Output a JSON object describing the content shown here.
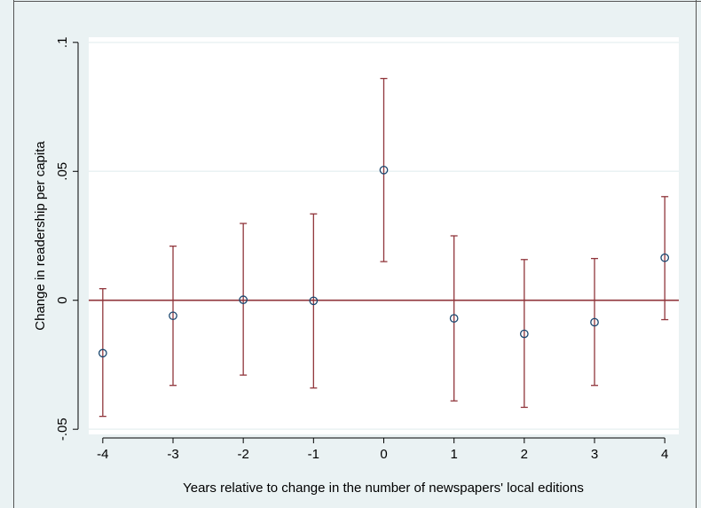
{
  "chart_data": {
    "type": "scatter",
    "title": "",
    "xlabel": "Years relative to change in the number of newspapers' local editions",
    "ylabel": "Change in readership per capita",
    "x_ticks": [
      -4,
      -3,
      -2,
      -1,
      0,
      1,
      2,
      3,
      4
    ],
    "x_tick_labels": [
      "-4",
      "-3",
      "-2",
      "-1",
      "0",
      "1",
      "2",
      "3",
      "4"
    ],
    "y_ticks": [
      -0.05,
      0,
      0.05,
      0.1
    ],
    "y_tick_labels": [
      "-.05",
      "0",
      ".05",
      ".1"
    ],
    "xlim": [
      -4.2,
      4.2
    ],
    "ylim": [
      -0.052,
      0.102
    ],
    "grid": true,
    "reference_line_y": 0,
    "series": [
      {
        "x": [
          -4,
          -3,
          -2,
          -1,
          0,
          1,
          2,
          3,
          4
        ],
        "y": [
          -0.0205,
          -0.006,
          0.0002,
          -0.0002,
          0.0505,
          -0.007,
          -0.013,
          -0.0085,
          0.0165
        ],
        "ci_low": [
          -0.045,
          -0.033,
          -0.029,
          -0.034,
          0.015,
          -0.039,
          -0.0415,
          -0.033,
          -0.0075
        ],
        "ci_high": [
          0.0045,
          0.021,
          0.0298,
          0.0335,
          0.086,
          0.025,
          0.0158,
          0.0162,
          0.0402
        ]
      }
    ],
    "colors": {
      "background": "#eaf2f3",
      "plot_area": "#ffffff",
      "grid": "#eaf2f3",
      "marker": "#1a476f",
      "error_bar": "#90353b",
      "reference_line": "#90353b",
      "axis": "#000000"
    }
  }
}
